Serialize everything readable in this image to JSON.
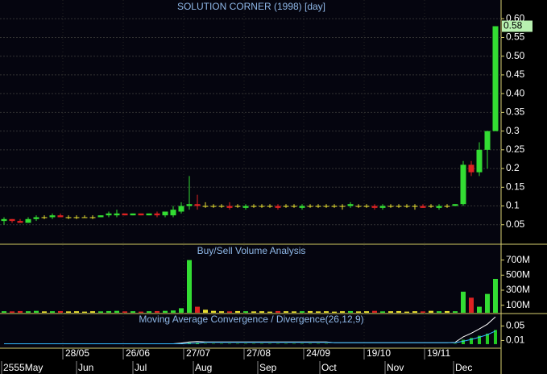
{
  "chart_data": [
    {
      "type": "candlestick",
      "title": "SOLUTION CORNER (1998) [day]",
      "open": [
        0.06,
        0.065,
        0.06,
        0.055,
        0.065,
        0.07,
        0.07,
        0.075,
        0.07,
        0.07,
        0.07,
        0.07,
        0.07,
        0.075,
        0.075,
        0.08,
        0.075,
        0.08,
        0.075,
        0.08,
        0.075,
        0.075,
        0.085,
        0.1,
        0.105,
        0.1,
        0.1,
        0.1,
        0.1,
        0.1,
        0.095,
        0.1,
        0.1,
        0.1,
        0.1,
        0.1,
        0.1,
        0.095,
        0.1,
        0.1,
        0.1,
        0.1,
        0.1,
        0.1,
        0.1,
        0.1,
        0.1,
        0.095,
        0.1,
        0.1,
        0.1,
        0.1,
        0.1,
        0.1,
        0.095,
        0.1,
        0.1,
        0.105,
        0.21,
        0.19,
        0.25,
        0.3
      ],
      "high": [
        0.07,
        0.065,
        0.065,
        0.07,
        0.075,
        0.075,
        0.08,
        0.08,
        0.075,
        0.075,
        0.075,
        0.075,
        0.075,
        0.085,
        0.09,
        0.08,
        0.08,
        0.08,
        0.08,
        0.085,
        0.085,
        0.1,
        0.11,
        0.18,
        0.13,
        0.11,
        0.105,
        0.105,
        0.11,
        0.105,
        0.105,
        0.105,
        0.105,
        0.105,
        0.105,
        0.105,
        0.105,
        0.105,
        0.105,
        0.105,
        0.105,
        0.105,
        0.105,
        0.11,
        0.105,
        0.105,
        0.105,
        0.105,
        0.105,
        0.105,
        0.105,
        0.105,
        0.105,
        0.105,
        0.105,
        0.105,
        0.105,
        0.22,
        0.22,
        0.27,
        0.3,
        0.58
      ],
      "low": [
        0.05,
        0.055,
        0.055,
        0.055,
        0.06,
        0.065,
        0.065,
        0.07,
        0.065,
        0.065,
        0.07,
        0.065,
        0.07,
        0.07,
        0.07,
        0.075,
        0.075,
        0.075,
        0.075,
        0.07,
        0.07,
        0.07,
        0.08,
        0.09,
        0.09,
        0.095,
        0.095,
        0.095,
        0.09,
        0.095,
        0.09,
        0.095,
        0.095,
        0.095,
        0.09,
        0.095,
        0.095,
        0.09,
        0.095,
        0.095,
        0.095,
        0.095,
        0.09,
        0.095,
        0.095,
        0.095,
        0.09,
        0.09,
        0.095,
        0.095,
        0.095,
        0.09,
        0.095,
        0.095,
        0.09,
        0.095,
        0.1,
        0.1,
        0.18,
        0.18,
        0.2,
        0.3
      ],
      "close": [
        0.065,
        0.06,
        0.055,
        0.065,
        0.07,
        0.07,
        0.075,
        0.07,
        0.07,
        0.07,
        0.07,
        0.07,
        0.075,
        0.08,
        0.08,
        0.075,
        0.08,
        0.075,
        0.08,
        0.075,
        0.085,
        0.09,
        0.1,
        0.105,
        0.1,
        0.1,
        0.1,
        0.1,
        0.095,
        0.1,
        0.1,
        0.1,
        0.1,
        0.1,
        0.095,
        0.1,
        0.1,
        0.1,
        0.1,
        0.1,
        0.1,
        0.1,
        0.1,
        0.105,
        0.1,
        0.1,
        0.095,
        0.1,
        0.1,
        0.1,
        0.1,
        0.1,
        0.095,
        0.1,
        0.1,
        0.1,
        0.105,
        0.21,
        0.19,
        0.25,
        0.3,
        0.58
      ],
      "up_color": "#33dd33",
      "down_color": "#dd2222",
      "flat_color": "#e8e030",
      "last_color": "#b8f0b0",
      "xlim": [
        0,
        62
      ],
      "ylim": [
        0,
        0.65
      ],
      "yticks": [
        0.05,
        0.1,
        0.15,
        0.2,
        0.25,
        0.3,
        0.35,
        {
          "value": 0.4,
          "label": "0.40"
        },
        0.45,
        {
          "value": 0.5,
          "label": "0.50"
        },
        0.55,
        {
          "value": 0.6,
          "label": "0.60"
        }
      ],
      "grid": true
    },
    {
      "type": "bar",
      "title": "Buy/Sell Volume Analysis",
      "values": [
        20,
        18,
        22,
        20,
        25,
        18,
        20,
        22,
        18,
        20,
        15,
        20,
        18,
        22,
        25,
        18,
        20,
        15,
        20,
        22,
        25,
        30,
        60,
        700,
        80,
        40,
        25,
        20,
        18,
        22,
        20,
        18,
        20,
        15,
        22,
        20,
        18,
        20,
        22,
        18,
        20,
        15,
        20,
        22,
        18,
        20,
        25,
        18,
        20,
        22,
        15,
        20,
        18,
        25,
        20,
        22,
        20,
        280,
        200,
        80,
        250,
        450
      ],
      "xlim": [
        0,
        62
      ],
      "ylim": [
        0,
        900
      ],
      "yticks": [
        {
          "value": 100,
          "label": "100M"
        },
        {
          "value": 300,
          "label": "300M"
        },
        {
          "value": 500,
          "label": "500M"
        },
        {
          "value": 700,
          "label": "700M"
        }
      ]
    },
    {
      "type": "line",
      "title": "Moving Average Convergence / Divergence(26,12,9)",
      "series": [
        {
          "kind": "bar",
          "color": "#22cc22",
          "values": [
            0,
            0,
            0,
            0,
            0,
            0,
            0,
            0,
            0,
            0,
            0,
            0,
            0,
            0,
            0,
            0,
            0,
            0,
            0,
            0,
            0,
            0,
            0.002,
            0.004,
            0.004,
            0.001,
            0.001,
            0.001,
            0.001,
            0.001,
            0.001,
            0.001,
            0.001,
            0.001,
            0.001,
            0.001,
            0.001,
            0.001,
            0.001,
            0.001,
            0.001,
            0,
            0,
            0,
            0,
            0,
            0,
            0,
            0,
            0,
            0,
            0,
            0,
            0,
            0,
            0,
            0.001,
            0.012,
            0.017,
            0.023,
            0.029,
            0.039
          ]
        },
        {
          "kind": "line",
          "color": "#ffffff",
          "values": [
            0.001,
            0.001,
            0.001,
            0.001,
            0.001,
            0.001,
            0.001,
            0.001,
            0.001,
            0.001,
            0.001,
            0.001,
            0.001,
            0.001,
            0.001,
            0.001,
            0.001,
            0.001,
            0.001,
            0.001,
            0.001,
            0.001,
            0.003,
            0.006,
            0.007,
            0.006,
            0.006,
            0.006,
            0.006,
            0.006,
            0.006,
            0.006,
            0.006,
            0.006,
            0.006,
            0.006,
            0.006,
            0.006,
            0.006,
            0.006,
            0.006,
            0.004,
            0.004,
            0.004,
            0.004,
            0.004,
            0.004,
            0.004,
            0.004,
            0.004,
            0.004,
            0.004,
            0.004,
            0.004,
            0.004,
            0.004,
            0.005,
            0.02,
            0.03,
            0.042,
            0.055,
            0.075
          ]
        },
        {
          "kind": "line",
          "color": "#33bbff",
          "values": [
            0.001,
            0.001,
            0.001,
            0.001,
            0.001,
            0.001,
            0.001,
            0.001,
            0.001,
            0.001,
            0.001,
            0.001,
            0.001,
            0.001,
            0.001,
            0.001,
            0.001,
            0.001,
            0.001,
            0.001,
            0.001,
            0.001,
            0.001,
            0.002,
            0.003,
            0.005,
            0.005,
            0.005,
            0.005,
            0.005,
            0.005,
            0.005,
            0.005,
            0.005,
            0.005,
            0.005,
            0.005,
            0.005,
            0.005,
            0.005,
            0.005,
            0.004,
            0.004,
            0.004,
            0.004,
            0.004,
            0.004,
            0.004,
            0.004,
            0.004,
            0.004,
            0.004,
            0.004,
            0.004,
            0.004,
            0.004,
            0.004,
            0.008,
            0.013,
            0.019,
            0.026,
            0.036
          ]
        }
      ],
      "xlim": [
        0,
        62
      ],
      "ylim": [
        -0.009,
        0.082
      ],
      "yticks": [
        0.01,
        0.05
      ],
      "xticks": [
        {
          "value": 7.8,
          "label": "28/05"
        },
        {
          "value": 15.3,
          "label": "26/06"
        },
        {
          "value": 22.8,
          "label": "27/07"
        },
        {
          "value": 30.3,
          "label": "27/08"
        },
        {
          "value": 37.7,
          "label": "24/09"
        },
        {
          "value": 45.2,
          "label": "19/10"
        },
        {
          "value": 52.7,
          "label": "19/11"
        }
      ],
      "month_ticks": [
        {
          "value": 0.2,
          "label": "2555May"
        },
        {
          "value": 9.5,
          "label": "Jun"
        },
        {
          "value": 16.5,
          "label": "Jul"
        },
        {
          "value": 24,
          "label": "Aug"
        },
        {
          "value": 32,
          "label": "Sep"
        },
        {
          "value": 39.7,
          "label": "Oct"
        },
        {
          "value": 47.8,
          "label": "Nov"
        },
        {
          "value": 56.3,
          "label": "Dec"
        }
      ]
    }
  ]
}
